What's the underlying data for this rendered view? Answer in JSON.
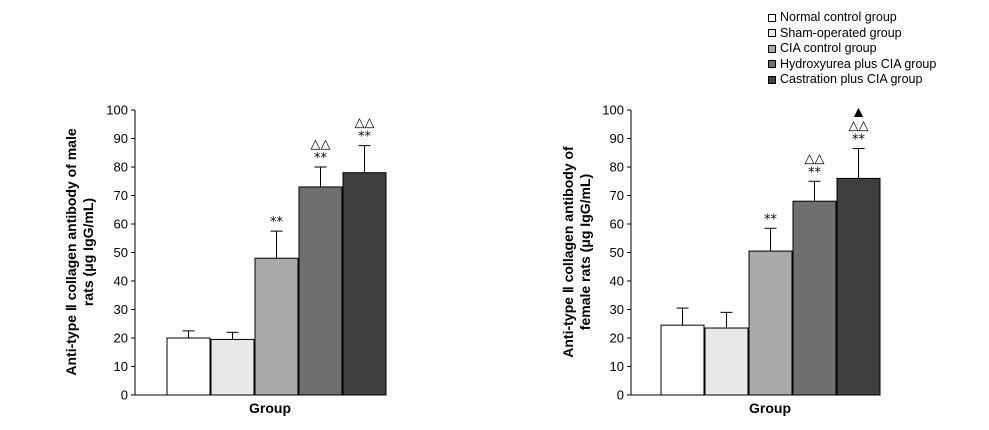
{
  "chart_data": [
    {
      "type": "bar",
      "title": "",
      "ylabel_line1": "Anti-type Ⅱ collagen antibody of male",
      "ylabel_line2": "rats (μg IgG/mL)",
      "xlabel": "Group",
      "ylim": [
        0,
        100
      ],
      "yticks": [
        0,
        10,
        20,
        30,
        40,
        50,
        60,
        70,
        80,
        90,
        100
      ],
      "categories": [
        "Normal control group",
        "Sham-operated group",
        "CIA control group",
        "Hydroxyurea plus CIA group",
        "Castration plus CIA group"
      ],
      "values": [
        20,
        19.5,
        48,
        73,
        78
      ],
      "errors": [
        2.5,
        2.5,
        9.5,
        7,
        9.5
      ],
      "annotations": [
        [],
        [],
        [
          "**"
        ],
        [
          "**",
          "△△"
        ],
        [
          "**",
          "△△"
        ]
      ]
    },
    {
      "type": "bar",
      "title": "",
      "ylabel_line1": "Anti-type Ⅱ collagen antibody of",
      "ylabel_line2": "female rats (μg IgG/mL)",
      "xlabel": "Group",
      "ylim": [
        0,
        100
      ],
      "yticks": [
        0,
        10,
        20,
        30,
        40,
        50,
        60,
        70,
        80,
        90,
        100
      ],
      "categories": [
        "Normal control group",
        "Sham-operated group",
        "CIA control group",
        "Hydroxyurea plus CIA group",
        "Castration plus CIA group"
      ],
      "values": [
        24.5,
        23.5,
        50.5,
        68,
        76
      ],
      "errors": [
        6,
        5.5,
        8,
        7,
        10.5
      ],
      "annotations": [
        [],
        [],
        [
          "**"
        ],
        [
          "**",
          "△△"
        ],
        [
          "**",
          "△△",
          "▲"
        ]
      ]
    }
  ],
  "legend": [
    {
      "label": "Normal control group",
      "color": "#ffffff"
    },
    {
      "label": "Sham-operated group",
      "color": "#e8e8e8"
    },
    {
      "label": "CIA control group",
      "color": "#a9a9a9"
    },
    {
      "label": "Hydroxyurea plus CIA group",
      "color": "#6f6f6f"
    },
    {
      "label": "Castration plus CIA group",
      "color": "#3f3f3f"
    }
  ]
}
